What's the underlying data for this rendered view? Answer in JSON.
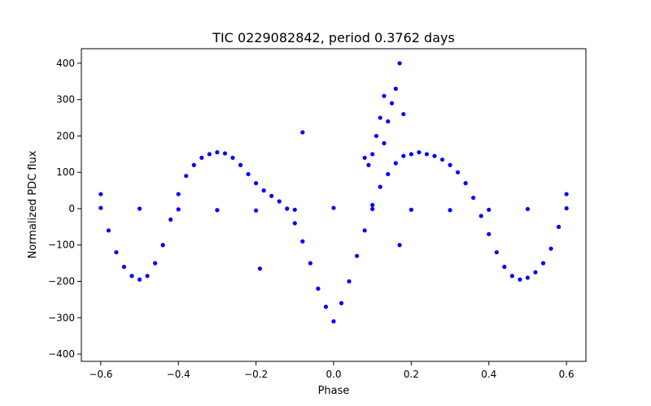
{
  "chart_data": {
    "type": "scatter",
    "title": "TIC 0229082842, period 0.3762 days",
    "xlabel": "Phase",
    "ylabel": "Normalized PDC flux",
    "xlim": [
      -0.65,
      0.65
    ],
    "ylim": [
      -420,
      440
    ],
    "xticks": [
      -0.6,
      -0.4,
      -0.2,
      0.0,
      0.2,
      0.4,
      0.6
    ],
    "xtick_labels": [
      "−0.6",
      "−0.4",
      "−0.2",
      "0.0",
      "0.2",
      "0.4",
      "0.6"
    ],
    "yticks": [
      -400,
      -300,
      -200,
      -100,
      0,
      100,
      200,
      300,
      400
    ],
    "ytick_labels": [
      "−400",
      "−300",
      "−200",
      "−100",
      "0",
      "100",
      "200",
      "300",
      "400"
    ],
    "grid": false,
    "marker_color": "#0000ff",
    "series": [
      {
        "x": [
          -0.6,
          -0.58,
          -0.56,
          -0.54,
          -0.52,
          -0.5,
          -0.48,
          -0.46,
          -0.44,
          -0.42,
          -0.4,
          -0.38,
          -0.36,
          -0.34,
          -0.32,
          -0.3,
          -0.28,
          -0.26,
          -0.24,
          -0.22,
          -0.2,
          -0.18,
          -0.16,
          -0.14,
          -0.12,
          -0.1,
          -0.08,
          -0.06,
          -0.04,
          -0.02,
          0.0,
          0.02,
          0.04,
          0.06,
          0.08,
          0.1,
          0.12,
          0.14,
          0.16,
          0.18,
          0.2,
          0.22,
          0.24,
          0.26,
          0.28,
          0.3,
          0.32,
          0.34,
          0.36,
          0.38,
          0.4,
          0.42,
          0.44,
          0.46,
          0.48,
          0.5,
          0.52,
          0.54,
          0.56,
          0.58,
          0.6
        ],
        "y": [
          40,
          -60,
          -120,
          -160,
          -185,
          -195,
          -185,
          -150,
          -100,
          -30,
          40,
          90,
          120,
          140,
          150,
          155,
          152,
          140,
          120,
          95,
          70,
          50,
          35,
          20,
          0,
          -40,
          -90,
          -150,
          -220,
          -270,
          -310,
          -260,
          -200,
          -130,
          -60,
          10,
          60,
          95,
          125,
          145,
          150,
          155,
          150,
          145,
          135,
          120,
          100,
          70,
          30,
          -20,
          -70,
          -120,
          -160,
          -185,
          -195,
          -190,
          -175,
          -150,
          -110,
          -50,
          40
        ]
      },
      {
        "x": [
          -0.6,
          -0.5,
          -0.4,
          -0.3,
          -0.2,
          -0.1,
          0.0,
          0.1,
          0.2,
          0.3,
          0.4,
          0.5,
          0.6
        ],
        "y": [
          2,
          0,
          -2,
          -4,
          -5,
          -3,
          2,
          -1,
          -3,
          -4,
          -3,
          -1,
          1
        ]
      },
      {
        "x": [
          0.1,
          0.12,
          0.13,
          0.14,
          0.15,
          0.16,
          0.17,
          0.18,
          0.08,
          0.11,
          0.09,
          0.13,
          -0.08,
          -0.19,
          0.17
        ],
        "y": [
          150,
          250,
          310,
          240,
          290,
          330,
          400,
          260,
          140,
          200,
          120,
          180,
          210,
          -165,
          -100
        ]
      }
    ]
  }
}
